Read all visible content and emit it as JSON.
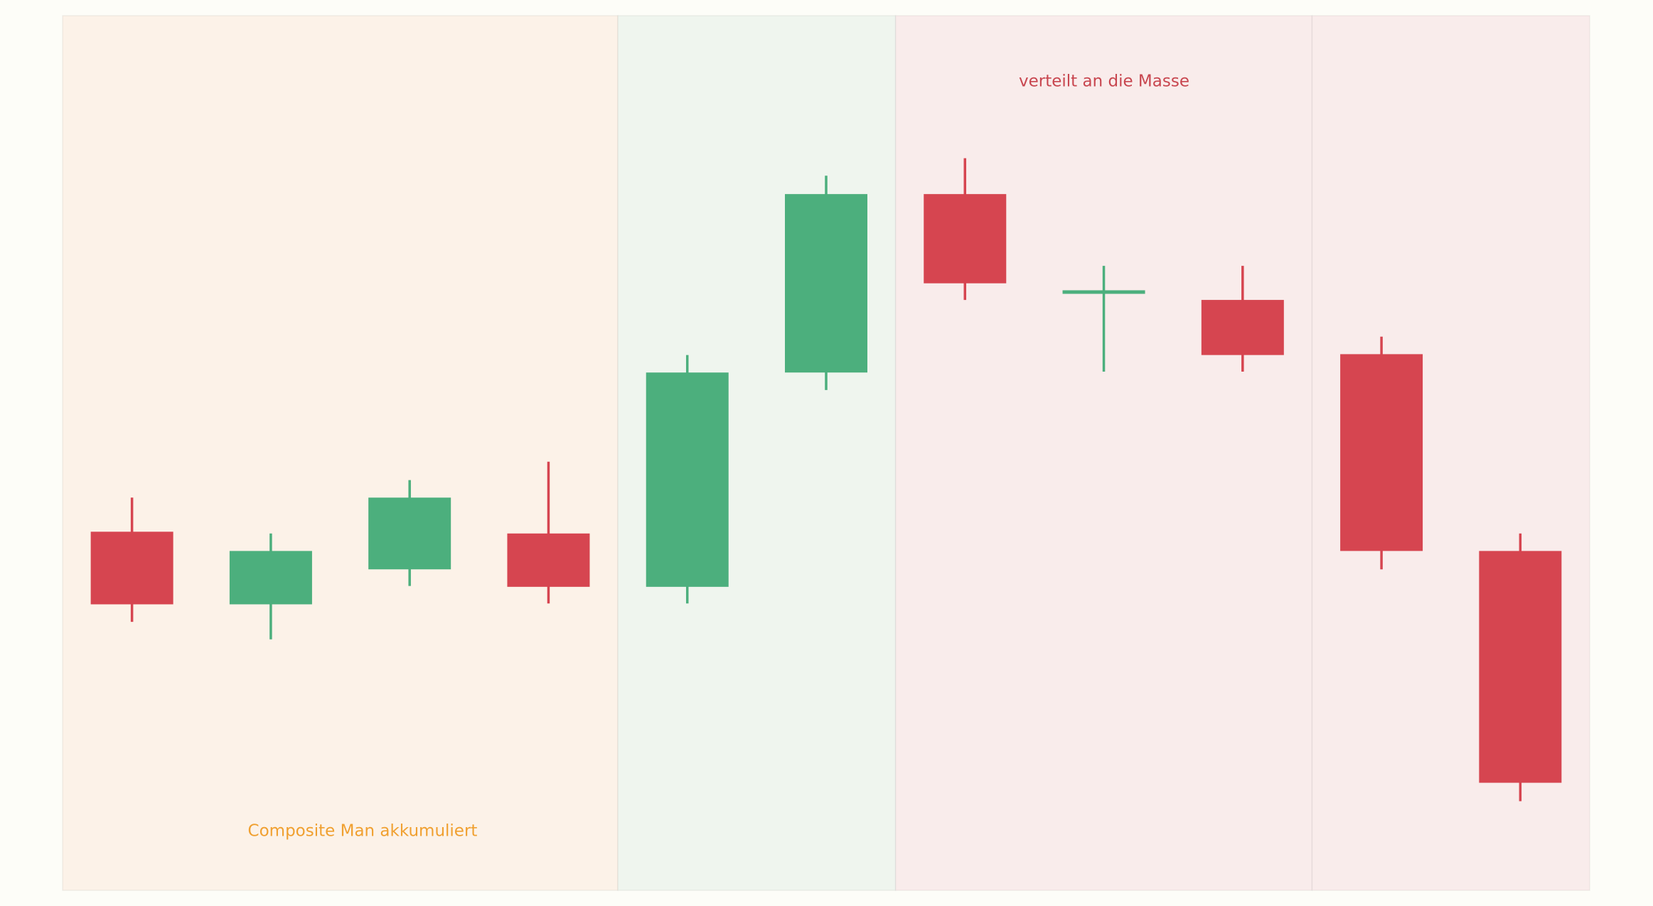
{
  "chart_data": {
    "type": "candlestick",
    "open": [
      41.0,
      32.7,
      36.7,
      40.8,
      34.7,
      59.2,
      79.6,
      68.4,
      67.5,
      61.3,
      38.8
    ],
    "high": [
      44.9,
      40.8,
      46.9,
      49.0,
      61.2,
      81.7,
      83.7,
      71.4,
      71.4,
      63.3,
      40.8
    ],
    "low": [
      30.7,
      28.7,
      34.8,
      32.8,
      32.8,
      57.2,
      67.5,
      59.3,
      59.3,
      36.7,
      10.2
    ],
    "close": [
      32.7,
      38.8,
      44.9,
      34.7,
      59.2,
      79.6,
      69.4,
      68.4,
      61.2,
      38.8,
      12.3
    ],
    "up_color": "#4caf7d",
    "down_color": "#d64550",
    "ylim": [
      0,
      100
    ],
    "regions": [
      {
        "from": 0,
        "to": 3,
        "color": "#fcf2e8"
      },
      {
        "from": 4,
        "to": 5,
        "color": "#eff5ee"
      },
      {
        "from": 6,
        "to": 8,
        "color": "#f9eceb"
      },
      {
        "from": 9,
        "to": 10,
        "color": "#f9eceb"
      }
    ],
    "annotations": [
      {
        "text": "Composite Man akkumuliert",
        "color": "#f0a030"
      },
      {
        "text": "verteilt an die Masse",
        "color": "#c8464f"
      }
    ]
  }
}
